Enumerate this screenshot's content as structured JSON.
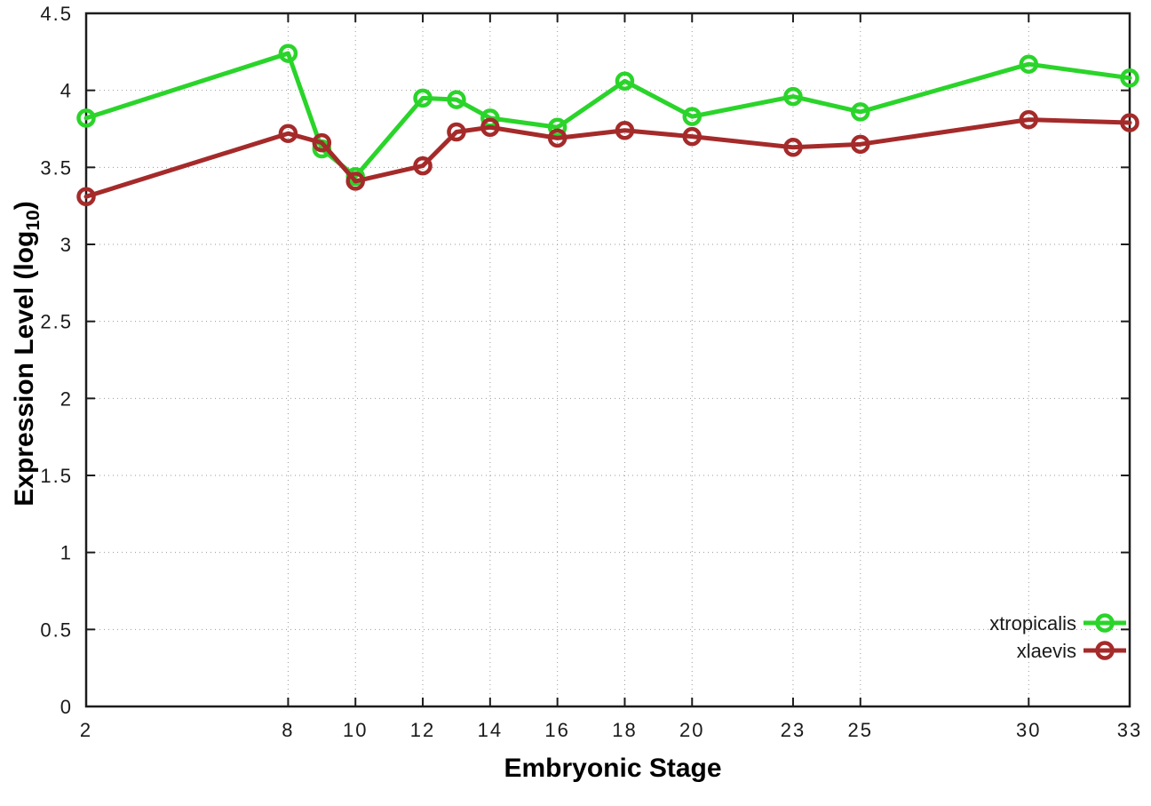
{
  "chart_data": {
    "type": "line",
    "title": "",
    "xlabel": "Embryonic Stage",
    "ylabel": "Expression Level (log10)",
    "ylabel_parts": {
      "prefix": "Expression Level (log",
      "sub": "10",
      "suffix": ")"
    },
    "x": [
      2,
      8,
      9,
      10,
      12,
      13,
      14,
      16,
      18,
      20,
      23,
      25,
      30,
      33
    ],
    "series": [
      {
        "name": "xtropicalis",
        "color": "#2ad42a",
        "values": [
          3.82,
          4.24,
          3.62,
          3.44,
          3.95,
          3.94,
          3.82,
          3.76,
          4.06,
          3.83,
          3.96,
          3.86,
          4.17,
          4.08
        ]
      },
      {
        "name": "xlaevis",
        "color": "#a52a2a",
        "values": [
          3.31,
          3.72,
          3.66,
          3.41,
          3.51,
          3.73,
          3.76,
          3.69,
          3.74,
          3.7,
          3.63,
          3.65,
          3.81,
          3.79
        ]
      }
    ],
    "xlim": [
      2,
      33
    ],
    "ylim": [
      0,
      4.5
    ],
    "x_ticks": [
      2,
      8,
      10,
      12,
      14,
      16,
      18,
      20,
      23,
      25,
      30,
      33
    ],
    "y_ticks": [
      0,
      0.5,
      1,
      1.5,
      2,
      2.5,
      3,
      3.5,
      4,
      4.5
    ],
    "grid": true,
    "legend_position": "bottom-right",
    "marker": "open-circle",
    "colors": {
      "border": "#1c1c1c",
      "grid": "#9a9a9a",
      "tick_text": "#1a1a1a"
    }
  }
}
